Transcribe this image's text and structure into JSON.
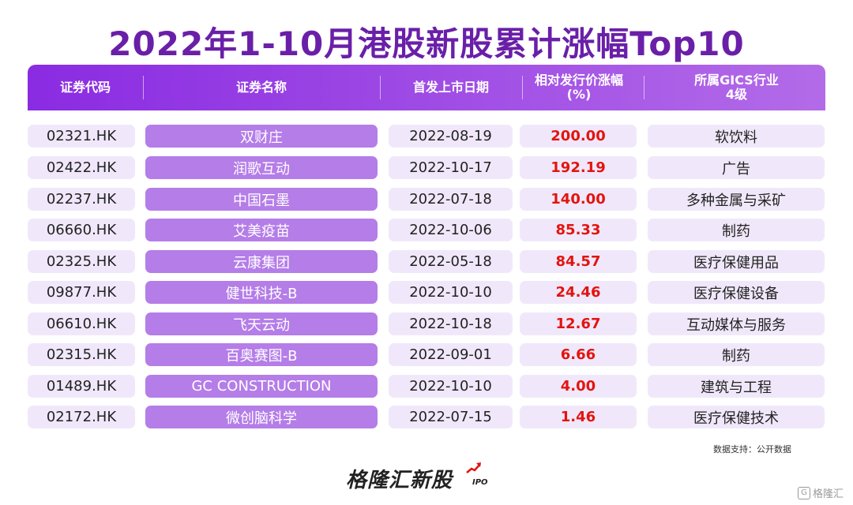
{
  "title": "2022年1-10月港股新股累计涨幅Top10",
  "headers": {
    "code": "证券代码",
    "name": "证券名称",
    "date": "首发上市日期",
    "pct_line1": "相对发行价涨幅",
    "pct_line2": "(%)",
    "industry_line1": "所属GICS行业",
    "industry_line2": "4级"
  },
  "rows": [
    {
      "code": "02321.HK",
      "name": "双财庄",
      "date": "2022-08-19",
      "pct": "200.00",
      "industry": "软饮料"
    },
    {
      "code": "02422.HK",
      "name": "润歌互动",
      "date": "2022-10-17",
      "pct": "192.19",
      "industry": "广告"
    },
    {
      "code": "02237.HK",
      "name": "中国石墨",
      "date": "2022-07-18",
      "pct": "140.00",
      "industry": "多种金属与采矿"
    },
    {
      "code": "06660.HK",
      "name": "艾美疫苗",
      "date": "2022-10-06",
      "pct": "85.33",
      "industry": "制药"
    },
    {
      "code": "02325.HK",
      "name": "云康集团",
      "date": "2022-05-18",
      "pct": "84.57",
      "industry": "医疗保健用品"
    },
    {
      "code": "09877.HK",
      "name": "健世科技-B",
      "date": "2022-10-10",
      "pct": "24.46",
      "industry": "医疗保健设备"
    },
    {
      "code": "06610.HK",
      "name": "飞天云动",
      "date": "2022-10-18",
      "pct": "12.67",
      "industry": "互动媒体与服务"
    },
    {
      "code": "02315.HK",
      "name": "百奥赛图-B",
      "date": "2022-09-01",
      "pct": "6.66",
      "industry": "制药"
    },
    {
      "code": "01489.HK",
      "name": "GC CONSTRUCTION",
      "date": "2022-10-10",
      "pct": "4.00",
      "industry": "建筑与工程"
    },
    {
      "code": "02172.HK",
      "name": "微创脑科学",
      "date": "2022-07-15",
      "pct": "1.46",
      "industry": "医疗保健技术"
    }
  ],
  "source": "数据支持：公开数据",
  "brand": "格隆汇新股",
  "brand_sub": "IPO",
  "watermark": "格隆汇",
  "watermark_icon": "G",
  "colors": {
    "title": "#6a1fa8",
    "header": "#8a2be2",
    "name_cell": "#b47de8",
    "cell": "#f0e8fa",
    "pct": "#e3140f"
  },
  "chart_data": {
    "type": "table",
    "title": "2022年1-10月港股新股累计涨幅Top10",
    "columns": [
      "证券代码",
      "证券名称",
      "首发上市日期",
      "相对发行价涨幅(%)",
      "所属GICS行业4级"
    ],
    "rows": [
      [
        "02321.HK",
        "双财庄",
        "2022-08-19",
        200.0,
        "软饮料"
      ],
      [
        "02422.HK",
        "润歌互动",
        "2022-10-17",
        192.19,
        "广告"
      ],
      [
        "02237.HK",
        "中国石墨",
        "2022-07-18",
        140.0,
        "多种金属与采矿"
      ],
      [
        "06660.HK",
        "艾美疫苗",
        "2022-10-06",
        85.33,
        "制药"
      ],
      [
        "02325.HK",
        "云康集团",
        "2022-05-18",
        84.57,
        "医疗保健用品"
      ],
      [
        "09877.HK",
        "健世科技-B",
        "2022-10-10",
        24.46,
        "医疗保健设备"
      ],
      [
        "06610.HK",
        "飞天云动",
        "2022-10-18",
        12.67,
        "互动媒体与服务"
      ],
      [
        "02315.HK",
        "百奥赛图-B",
        "2022-09-01",
        6.66,
        "制药"
      ],
      [
        "01489.HK",
        "GC CONSTRUCTION",
        "2022-10-10",
        4.0,
        "建筑与工程"
      ],
      [
        "02172.HK",
        "微创脑科学",
        "2022-07-15",
        1.46,
        "医疗保健技术"
      ]
    ]
  }
}
